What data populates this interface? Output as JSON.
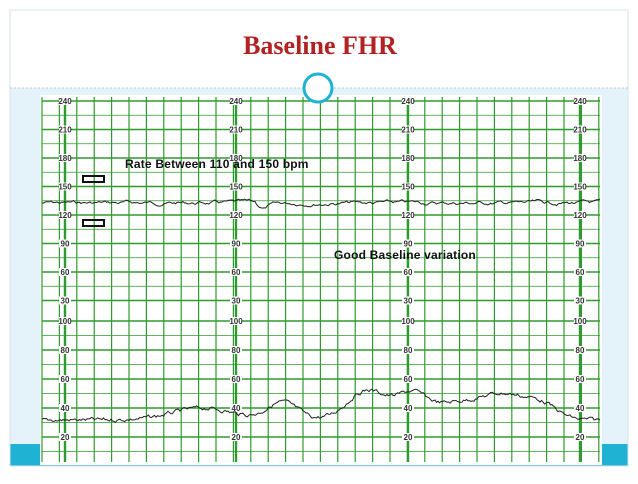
{
  "header": {
    "title": "Baseline FHR"
  },
  "annotations": [
    "Rate Between 110 and 150 bpm",
    "Good Baseline variation"
  ],
  "fhr_scale": [
    "240",
    "210",
    "180",
    "150",
    "120",
    "90",
    "60",
    "30"
  ],
  "toco_scale": [
    "100",
    "80",
    "60",
    "40",
    "20"
  ]
}
